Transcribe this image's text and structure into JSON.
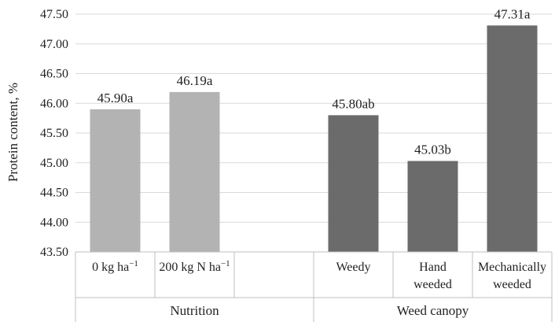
{
  "chart_data": {
    "type": "bar",
    "ylabel": "Protein content, %",
    "ylim": [
      43.5,
      47.5
    ],
    "yticks": [
      "43.50",
      "44.00",
      "44.50",
      "45.00",
      "45.50",
      "46.00",
      "46.50",
      "47.00",
      "47.50"
    ],
    "grid": true,
    "groups": [
      {
        "name": "Nutrition",
        "color": "#b3b3b3",
        "bars": [
          {
            "label": "0 kg ha",
            "sup": "−1",
            "value": 45.9,
            "data_label": "45.90a"
          },
          {
            "label": "200 kg N ha",
            "sup": "−1",
            "value": 46.19,
            "data_label": "46.19a"
          }
        ]
      },
      {
        "name": "Weed canopy",
        "color": "#6b6b6b",
        "bars": [
          {
            "label": "Weedy",
            "value": 45.8,
            "data_label": "45.80ab"
          },
          {
            "label": "Hand weeded",
            "lines": [
              "Hand",
              "weeded"
            ],
            "value": 45.03,
            "data_label": "45.03b"
          },
          {
            "label": "Mechanically weeded",
            "lines": [
              "Mechanically",
              "weeded"
            ],
            "value": 47.31,
            "data_label": "47.31a"
          }
        ]
      }
    ]
  }
}
